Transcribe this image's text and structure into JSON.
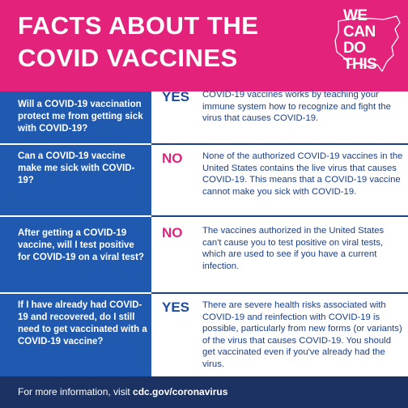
{
  "header": {
    "title_line1": "FACTS ABOUT THE",
    "title_line2": "COVID VACCINES",
    "logo": {
      "line1": "WE",
      "line2": "CAN",
      "line3": "DO",
      "line4": "THIS",
      "icon": "us-map-outline-icon"
    },
    "bg_color": "#e3237b"
  },
  "faq": [
    {
      "question": "Will a COVID-19 vaccination protect me from getting sick with COVID-19?",
      "answer_word": "YES",
      "answer_text": "COVID-19 vaccines works by teaching your immune system how to recognize and fight the virus that causes COVID-19."
    },
    {
      "question": "Can a COVID-19 vaccine make me sick with COVID-19?",
      "answer_word": "NO",
      "answer_text": "None of the authorized COVID-19 vaccines in the United States contains the live virus that causes COVID-19. This means that a COVID-19 vaccine cannot make you sick with COVID-19."
    },
    {
      "question": "After getting a COVID-19 vaccine, will I test positive for COVID-19 on a viral test?",
      "answer_word": "NO",
      "answer_text": "The vaccines authorized in the United States can't cause you to test positive on viral tests, which are used to see if you have a current infection."
    },
    {
      "question": "If I have already had COVID-19 and recovered, do I still need to get vaccinated with a COVID-19 vaccine?",
      "answer_word": "YES",
      "answer_text": "There are severe health risks associated with COVID-19 and reinfection with COVID-19 is possible, particularly from new forms (or variants) of the virus that causes COVID-19. You should get vaccinated even if you've already had the virus."
    }
  ],
  "footer": {
    "prefix": "For more information, visit ",
    "link": "cdc.gov/coronavirus"
  },
  "colors": {
    "pink": "#e3237b",
    "question_blue": "#1f5ab0",
    "text_blue": "#1b3f8a",
    "footer_navy": "#1b3263"
  }
}
